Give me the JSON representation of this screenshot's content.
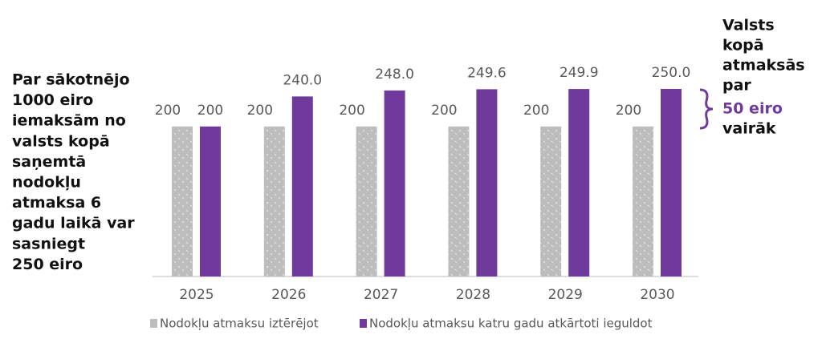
{
  "chart_data": {
    "type": "bar",
    "categories": [
      "2025",
      "2026",
      "2027",
      "2028",
      "2029",
      "2030"
    ],
    "series": [
      {
        "name": "Nodokļu atmaksu iztērējot",
        "color": "#bdbdbd",
        "values": [
          200,
          200,
          200,
          200,
          200,
          200
        ]
      },
      {
        "name": "Nodokļu atmaksu katru gadu atkārtoti ieguldot",
        "color": "#6f3a9c",
        "values": [
          200,
          240,
          248,
          249.6,
          249.9,
          250
        ],
        "value_labels": [
          "200",
          "240.0",
          "248.0",
          "249.6",
          "249.9",
          "250.0"
        ]
      }
    ],
    "annotations": {
      "left": [
        "Par sākotnējo",
        "1000 eiro",
        "iemaksām no",
        "valsts kopā",
        "saņemtā",
        "nodokļu",
        "atmaksa 6",
        "gadu laikā var",
        "sasniegt",
        "250 eiro"
      ],
      "right": [
        "Valsts",
        "kopā",
        "atmaksās",
        "par"
      ],
      "right_highlight": "50 eiro",
      "right_end": "vairāk"
    }
  }
}
